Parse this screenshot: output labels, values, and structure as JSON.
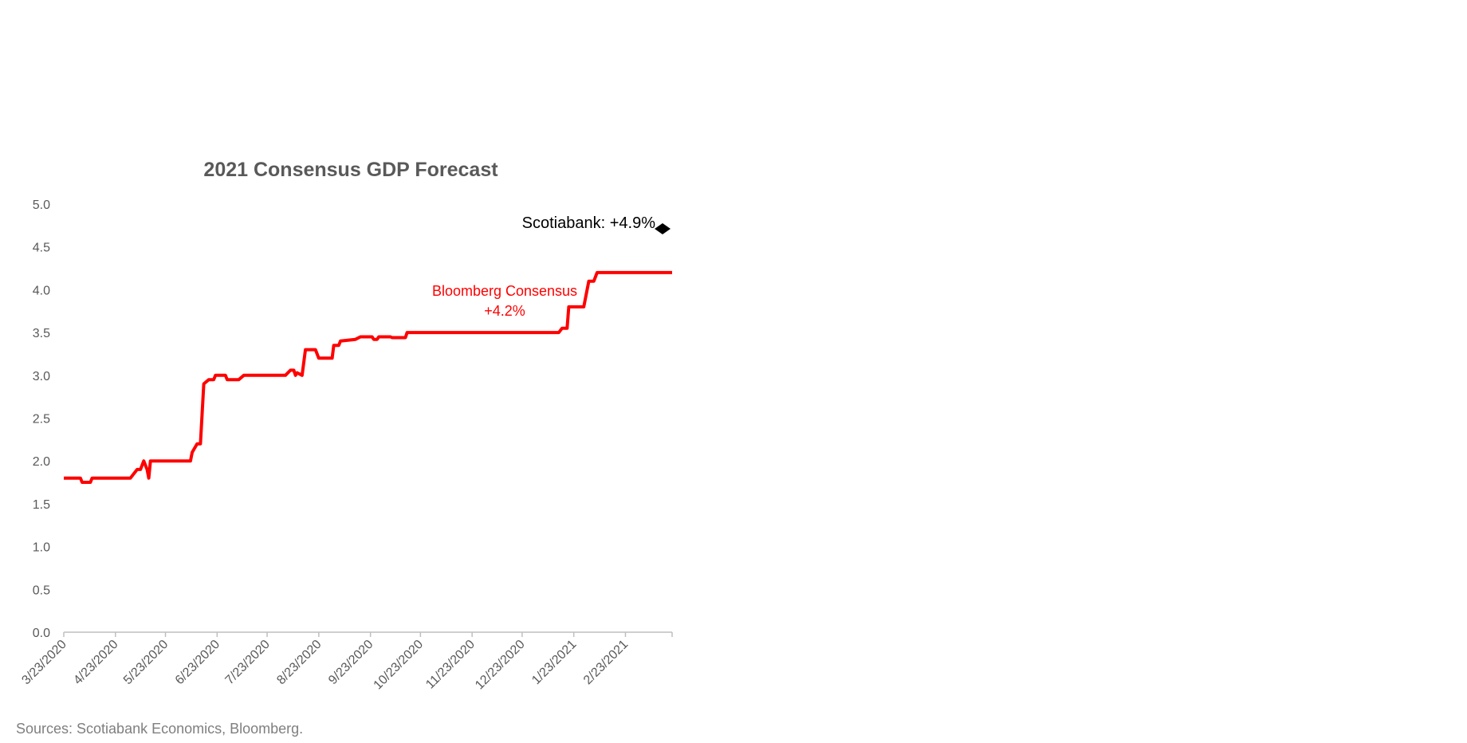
{
  "chart_data": {
    "type": "line",
    "title": "2021 Consensus GDP Forecast",
    "xlabel": "",
    "ylabel": "",
    "ylim": [
      0,
      5
    ],
    "yticks": [
      "0.0",
      "0.5",
      "1.0",
      "1.5",
      "2.0",
      "2.5",
      "3.0",
      "3.5",
      "4.0",
      "4.5",
      "5.0"
    ],
    "xlim": [
      "2020-03-23",
      "2021-03-23"
    ],
    "xticks": [
      "3/23/2020",
      "4/23/2020",
      "5/23/2020",
      "6/23/2020",
      "7/23/2020",
      "8/23/2020",
      "9/23/2020",
      "10/23/2020",
      "11/23/2020",
      "12/23/2020",
      "1/23/2021",
      "2/23/2021"
    ],
    "grid": false,
    "legend": "none",
    "series": [
      {
        "color": "#ff0000",
        "points": [
          [
            "2020-03-23",
            1.8
          ],
          [
            "2020-04-02",
            1.8
          ],
          [
            "2020-04-03",
            1.75
          ],
          [
            "2020-04-08",
            1.75
          ],
          [
            "2020-04-09",
            1.8
          ],
          [
            "2020-05-02",
            1.8
          ],
          [
            "2020-05-06",
            1.9
          ],
          [
            "2020-05-08",
            1.9
          ],
          [
            "2020-05-10",
            2.0
          ],
          [
            "2020-05-12",
            1.9
          ],
          [
            "2020-05-13",
            1.8
          ],
          [
            "2020-05-14",
            2.0
          ],
          [
            "2020-06-07",
            2.0
          ],
          [
            "2020-06-08",
            2.1
          ],
          [
            "2020-06-11",
            2.2
          ],
          [
            "2020-06-13",
            2.2
          ],
          [
            "2020-06-15",
            2.9
          ],
          [
            "2020-06-18",
            2.95
          ],
          [
            "2020-06-21",
            2.95
          ],
          [
            "2020-06-22",
            3.0
          ],
          [
            "2020-06-28",
            3.0
          ],
          [
            "2020-06-29",
            2.95
          ],
          [
            "2020-07-06",
            2.95
          ],
          [
            "2020-07-09",
            3.0
          ],
          [
            "2020-08-03",
            3.0
          ],
          [
            "2020-08-06",
            3.06
          ],
          [
            "2020-08-08",
            3.06
          ],
          [
            "2020-08-09",
            3.0
          ],
          [
            "2020-08-10",
            3.03
          ],
          [
            "2020-08-13",
            3.0
          ],
          [
            "2020-08-15",
            3.3
          ],
          [
            "2020-08-21",
            3.3
          ],
          [
            "2020-08-23",
            3.2
          ],
          [
            "2020-08-31",
            3.2
          ],
          [
            "2020-09-01",
            3.35
          ],
          [
            "2020-09-04",
            3.35
          ],
          [
            "2020-09-05",
            3.4
          ],
          [
            "2020-09-14",
            3.42
          ],
          [
            "2020-09-17",
            3.45
          ],
          [
            "2020-09-24",
            3.45
          ],
          [
            "2020-09-25",
            3.42
          ],
          [
            "2020-09-27",
            3.42
          ],
          [
            "2020-09-28",
            3.45
          ],
          [
            "2020-10-05",
            3.45
          ],
          [
            "2020-10-06",
            3.44
          ],
          [
            "2020-10-14",
            3.44
          ],
          [
            "2020-10-15",
            3.5
          ],
          [
            "2021-01-14",
            3.5
          ],
          [
            "2021-01-16",
            3.55
          ],
          [
            "2021-01-19",
            3.55
          ],
          [
            "2021-01-20",
            3.8
          ],
          [
            "2021-01-29",
            3.8
          ],
          [
            "2021-02-01",
            4.1
          ],
          [
            "2021-02-04",
            4.1
          ],
          [
            "2021-02-06",
            4.2
          ],
          [
            "2021-03-23",
            4.2
          ]
        ]
      }
    ],
    "annotations": [
      {
        "text": "Scotiabank: +4.9%",
        "marker": "diamond",
        "color": "#000000"
      },
      {
        "text_line1": "Bloomberg Consensus",
        "text_line2": "+4.2%",
        "color": "#ff0000"
      }
    ]
  },
  "footer": {
    "source": "Sources: Scotiabank Economics, Bloomberg."
  }
}
